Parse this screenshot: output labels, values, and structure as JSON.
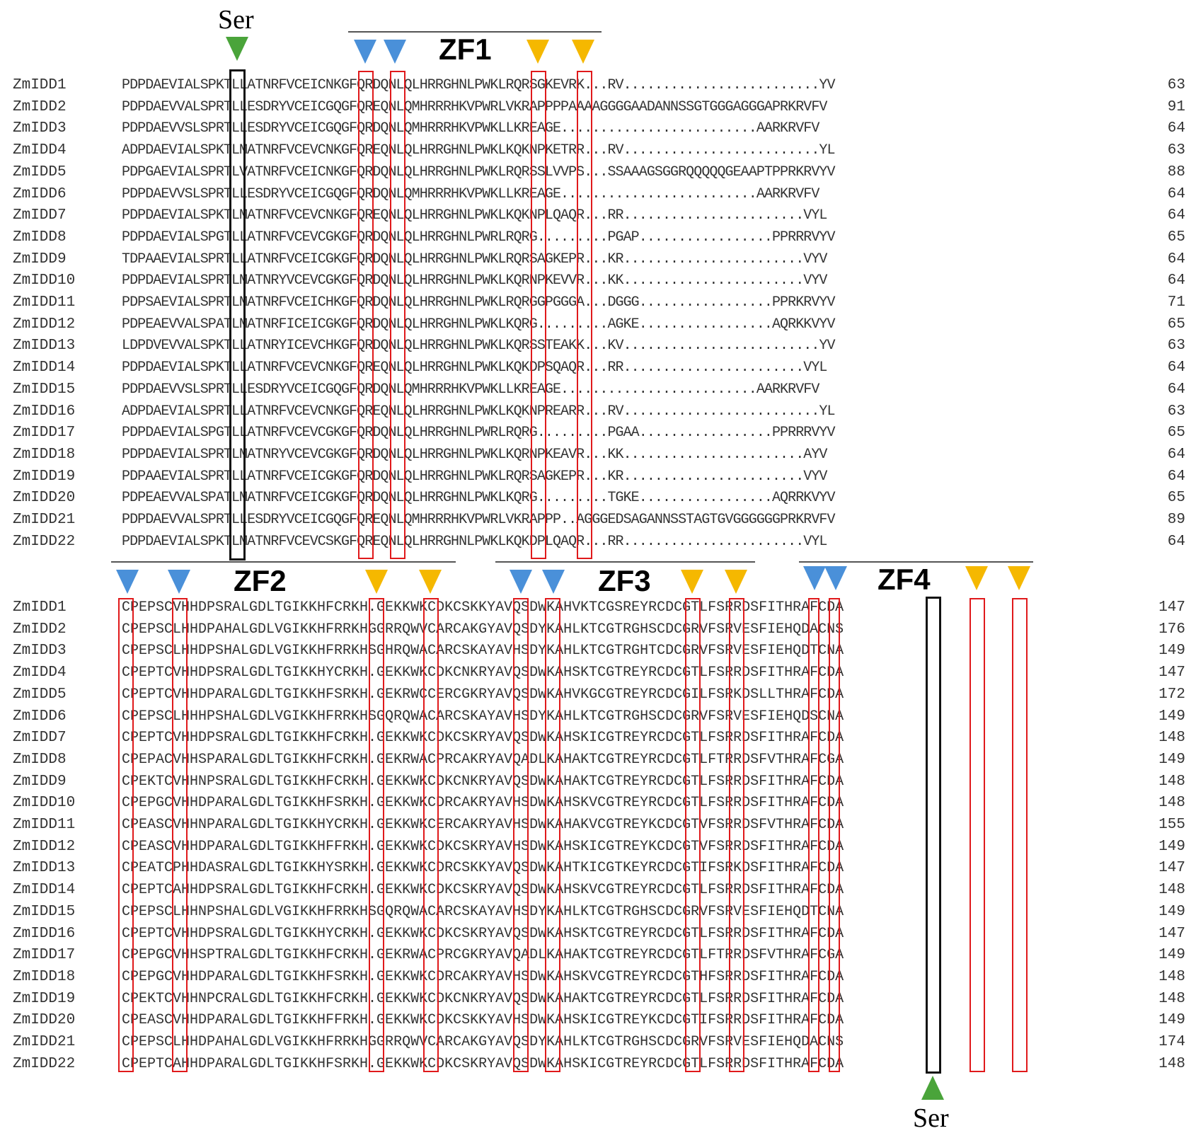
{
  "colors": {
    "cys": "#4a90d9",
    "his": "#f5b800",
    "ser": "#4aa43a",
    "box": "#e0191b",
    "ser_box": "#111111"
  },
  "labels": {
    "ser_top": "Ser",
    "ser_bottom": "Ser",
    "zf": [
      "ZF1",
      "ZF2",
      "ZF3",
      "ZF4"
    ]
  },
  "block1": {
    "rows": [
      {
        "name": "ZmIDD1",
        "seq": "PDPDAEVIALSPKTLLATNRFVCEICNKGFQRDQNLQLHRRGHNLPWKLRQRSGKEVRK...RV.........................YV",
        "end": "63"
      },
      {
        "name": "ZmIDD2",
        "seq": "PDPDAEVVALSPRTLLESDRYVCEICGQGFQREQNLQMHRRRHKVPWRLVKRAPPPPAAAAGGGGAADANNSSGTGGGAGGGAPRKRVFV",
        "end": "91"
      },
      {
        "name": "ZmIDD3",
        "seq": "PDPDAEVVSLSPRTLLESDRYVCEICGQGFQRDQNLQMHRRRHKVPWKLLKREAGE.........................AARKRVFV",
        "end": "64"
      },
      {
        "name": "ZmIDD4",
        "seq": "ADPDAEVIALSPKTLMATNRFVCEVCNKGFQREQNLQLHRRGHNLPWKLKQKNPKETRR...RV.........................YL",
        "end": "63"
      },
      {
        "name": "ZmIDD5",
        "seq": "PDPGAEVIALSPRTLVATNRFVCEICNKGFQRDQNLQLHRRGHNLPWKLRQRSSLVVPS...SSAAAGSGGRQQQQQGEAAPTPPRKRVYV",
        "end": "88"
      },
      {
        "name": "ZmIDD6",
        "seq": "PDPDAEVVSLSPRTLLESDRYVCEICGQGFQRDQNLQMHRRRHKVPWKLLKREAGE.........................AARKRVFV",
        "end": "64"
      },
      {
        "name": "ZmIDD7",
        "seq": "PDPDAEVIALSPKTLMATNRFVCEVCNKGFQREQNLQLHRRGHNLPWKLKQKNPLQAQR...RR.......................VYL",
        "end": "64"
      },
      {
        "name": "ZmIDD8",
        "seq": "PDPDAEVIALSPGTLLATNRFVCEVCGKGFQRDQNLQLHRRGHNLPWRLRQRG.........PGAP.................PPRRRVYV",
        "end": "65"
      },
      {
        "name": "ZmIDD9",
        "seq": "TDPAAEVIALSPRTLLATNRFVCEICGKGFQRDQNLQLHRRGHNLPWKLRQRSAGKEPR...KR.......................VYV",
        "end": "64"
      },
      {
        "name": "ZmIDD10",
        "seq": "PDPDAEVIALSPRTLMATNRYVCEVCGKGFQRDQNLQLHRRGHNLPWKLKQRNPKEVVR...KK.......................VYV",
        "end": "64"
      },
      {
        "name": "ZmIDD11",
        "seq": "PDPSAEVIALSPRTLMATNRFVCEICHKGFQRDQNLQLHRRGHNLPWKLRQRGGPGGGA...DGGG.................PPRKRVYV",
        "end": "71"
      },
      {
        "name": "ZmIDD12",
        "seq": "PDPEAEVVALSPATLMATNRFICEICGKGFQRDQNLQLHRRGHNLPWKLKQRG.........AGKE.................AQRKKVYV",
        "end": "65"
      },
      {
        "name": "ZmIDD13",
        "seq": "LDPDVEVVALSPKTLLATNRYICEVCHKGFQRDQNLQLHRRGHNLPWKLKQRSSTEAKK...KV.........................YV",
        "end": "63"
      },
      {
        "name": "ZmIDD14",
        "seq": "PDPDAEVIALSPKTLLATNRFVCEVCNKGFQREQNLQLHRRGHNLPWKLKQKDPSQAQR...RR.......................VYL",
        "end": "64"
      },
      {
        "name": "ZmIDD15",
        "seq": "PDPDAEVVSLSPRTLLESDRYVCEICGQGFQRDQNLQMHRRRHKVPWKLLKREAGE.........................AARKRVFV",
        "end": "64"
      },
      {
        "name": "ZmIDD16",
        "seq": "ADPDAEVIALSPRTLLATNRFVCEVCNKGFQREQNLQLHRRGHNLPWKLKQKNPREARR...RV.........................YL",
        "end": "63"
      },
      {
        "name": "ZmIDD17",
        "seq": "PDPDAEVIALSPGTLLATNRFVCEVCGKGFQRDQNLQLHRRGHNLPWRLRQRG.........PGAA.................PPRRRVYV",
        "end": "65"
      },
      {
        "name": "ZmIDD18",
        "seq": "PDPDAEVIALSPRTLMATNRYVCEVCGKGFQRDQNLQLHRRGHNLPWKLKQRNPKEAVR...KK.......................AYV",
        "end": "64"
      },
      {
        "name": "ZmIDD19",
        "seq": "PDPAAEVIALSPRTLLATNRFVCEICGKGFQRDQNLQLHRRGHNLPWKLRQRSAGKEPR...KR.......................VYV",
        "end": "64"
      },
      {
        "name": "ZmIDD20",
        "seq": "PDPEAEVVALSPATLMATNRFVCEICGKGFQRDQNLQLHRRGHNLPWKLKQRG.........TGKE.................AQRRKVYV",
        "end": "65"
      },
      {
        "name": "ZmIDD21",
        "seq": "PDPDAEVVALSPRTLLESDRYVCEICGQGFQREQNLQMHRRRHKVPWRLVKRAPPP..AGGGEDSAGANNSSTAGTGVGGGGGGPRKRVFV",
        "end": "89"
      },
      {
        "name": "ZmIDD22",
        "seq": "PDPDAEVIALSPKTLMATNRFVCEVCSKGFQREQNLQLHRRGHNLPWKLKQKDPLQAQR...RR.......................VYL",
        "end": "64"
      }
    ]
  },
  "block2": {
    "rows": [
      {
        "name": "ZmIDD1",
        "seq": "CPEPSCVHHDPSRALGDLTGIKKHFCRKH.GEKKWKCDKCSKKYAVQSDWKAHVKTCGSREYRCDCGTLFSRRDSFITHRAFCDA",
        "end": "147"
      },
      {
        "name": "ZmIDD2",
        "seq": "CPEPSCLHHDPAHALGDLVGIKKHFRRKHGGRRQWVCARCAKGYAVQSDYKAHLKTCGTRGHSCDCGRVFSRVESFIEHQDACNS",
        "end": "176"
      },
      {
        "name": "ZmIDD3",
        "seq": "CPEPSCLHHDPSHALGDLVGIKKHFRRKHSGHRQWACARCSKAYAVHSDYKAHLKTCGTRGHTCDCGRVFSRVESFIEHQDTCNA",
        "end": "149"
      },
      {
        "name": "ZmIDD4",
        "seq": "CPEPTCVHHDPSRALGDLTGIKKHYCRKH.GEKKWKCDKCNKRYAVQSDWKAHSKTCGTREYRCDCGTLFSRRDSFITHRAFCDA",
        "end": "147"
      },
      {
        "name": "ZmIDD5",
        "seq": "CPEPTCVHHDPARALGDLTGIKKHFSRKH.GEKRWCCERCGKRYAVQSDWKAHVKGCGTREYRCDCGILFSRKDSLLTHRAFCDA",
        "end": "172"
      },
      {
        "name": "ZmIDD6",
        "seq": "CPEPSCLHHHPSHALGDLVGIKKHFRRKHSGQRQWACARCSKAYAVHSDYKAHLKTCGTRGHSCDCGRVFSRVESFIEHQDSCNA",
        "end": "149"
      },
      {
        "name": "ZmIDD7",
        "seq": "CPEPTCVHHDPSRALGDLTGIKKHFCRKH.GEKKWKCDKCSKRYAVQSDWKAHSKICGTREYRCDCGTLFSRRDSFITHRAFCDA",
        "end": "148"
      },
      {
        "name": "ZmIDD8",
        "seq": "CPEPACVHHSPARALGDLTGIKKHFCRKH.GEKRWACPRCAKRYAVQADLKAHAKTCGTREYRCDCGTLFTRRDSFVTHRAFCGA",
        "end": "149"
      },
      {
        "name": "ZmIDD9",
        "seq": "CPEKTCVHHNPSRALGDLTGIKKHFCRKH.GEKKWKCDKCNKRYAVQSDWKAHAKTCGTREYRCDCGTLFSRRDSFITHRAFCDA",
        "end": "148"
      },
      {
        "name": "ZmIDD10",
        "seq": "CPEPGCVHHDPARALGDLTGIKKHFSRKH.GEKKWKCDRCAKRYAVHSDWKAHSKVCGTREYRCDCGTLFSRRDSFITHRAFCDA",
        "end": "148"
      },
      {
        "name": "ZmIDD11",
        "seq": "CPEASCVHHNPARALGDLTGIKKHYCRKH.GEKKWKCERCAKRYAVHSDWKAHAKVCGTREYKCDCGTVFSRRDSFVTHRAFCDA",
        "end": "155"
      },
      {
        "name": "ZmIDD12",
        "seq": "CPEASCVHHDPARALGDLTGIKKHFFRKH.GEKKWKCDKCSKRYAVHSDWKAHSKICGTREYKCDCGTVFSRRDSFITHRAFCDA",
        "end": "149"
      },
      {
        "name": "ZmIDD13",
        "seq": "CPEATCPHHDASRALGDLTGIKKHYSRKH.GEKKWKCDRCSKKYAVQSDWKAHTKICGTKEYRCDCGTIFSRKDSFITHRAFCDA",
        "end": "147"
      },
      {
        "name": "ZmIDD14",
        "seq": "CPEPTCAHHDPSRALGDLTGIKKHFCRKH.GEKKWKCDKCSKRYAVQSDWKAHSKVCGTREYRCDCGTLFSRRDSFITHRAFCDA",
        "end": "148"
      },
      {
        "name": "ZmIDD15",
        "seq": "CPEPSCLHHNPSHALGDLVGIKKHFRRKHSGQRQWACARCSKAYAVHSDYKAHLKTCGTRGHSCDCGRVFSRVESFIEHQDTCNA",
        "end": "149"
      },
      {
        "name": "ZmIDD16",
        "seq": "CPEPTCVHHDPSRALGDLTGIKKHYCRKH.GEKKWKCDKCSKRYAVQSDWKAHSKTCGTREYRCDCGTLFSRRDSFITHRAFCDA",
        "end": "147"
      },
      {
        "name": "ZmIDD17",
        "seq": "CPEPGCVHHSPTRALGDLTGIKKHFCRKH.GEKRWACPRCGKRYAVQADLKAHAKTCGTREYRCDCGTLFTRRDSFVTHRAFCGA",
        "end": "149"
      },
      {
        "name": "ZmIDD18",
        "seq": "CPEPGCVHHDPARALGDLTGIKKHFSRKH.GEKKWKCDRCAKRYAVHSDWKAHSKVCGTREYRCDCGTHFSRRDSFITHRAFCDA",
        "end": "148"
      },
      {
        "name": "ZmIDD19",
        "seq": "CPEKTCVHHNPCRALGDLTGIKKHFCRKH.GEKKWKCDKCNKRYAVQSDWKAHAKTCGTREYRCDCGTLFSRRDSFITHRAFCDA",
        "end": "148"
      },
      {
        "name": "ZmIDD20",
        "seq": "CPEASCVHHDPARALGDLTGIKKHFFRKH.GEKKWKCDKCSKKYAVHSDWKAHSKICGTREYKCDCGTIFSRRDSFITHRAFCDA",
        "end": "149"
      },
      {
        "name": "ZmIDD21",
        "seq": "CPEPSCLHHDPAHALGDLVGIKKHFRRKHGGRRQWVCARCAKGYAVQSDYKAHLKTCGTRGHSCDCGRVFSRVESFIEHQDACNS",
        "end": "174"
      },
      {
        "name": "ZmIDD22",
        "seq": "CPEPTCAHHDPARALGDLTGIKKHFSRKH.GEKKWKCDKCSKRYAVQSDWKAHSKICGTREYRCDCGTLFSRRDSFITHRAFCDA",
        "end": "148"
      }
    ]
  }
}
